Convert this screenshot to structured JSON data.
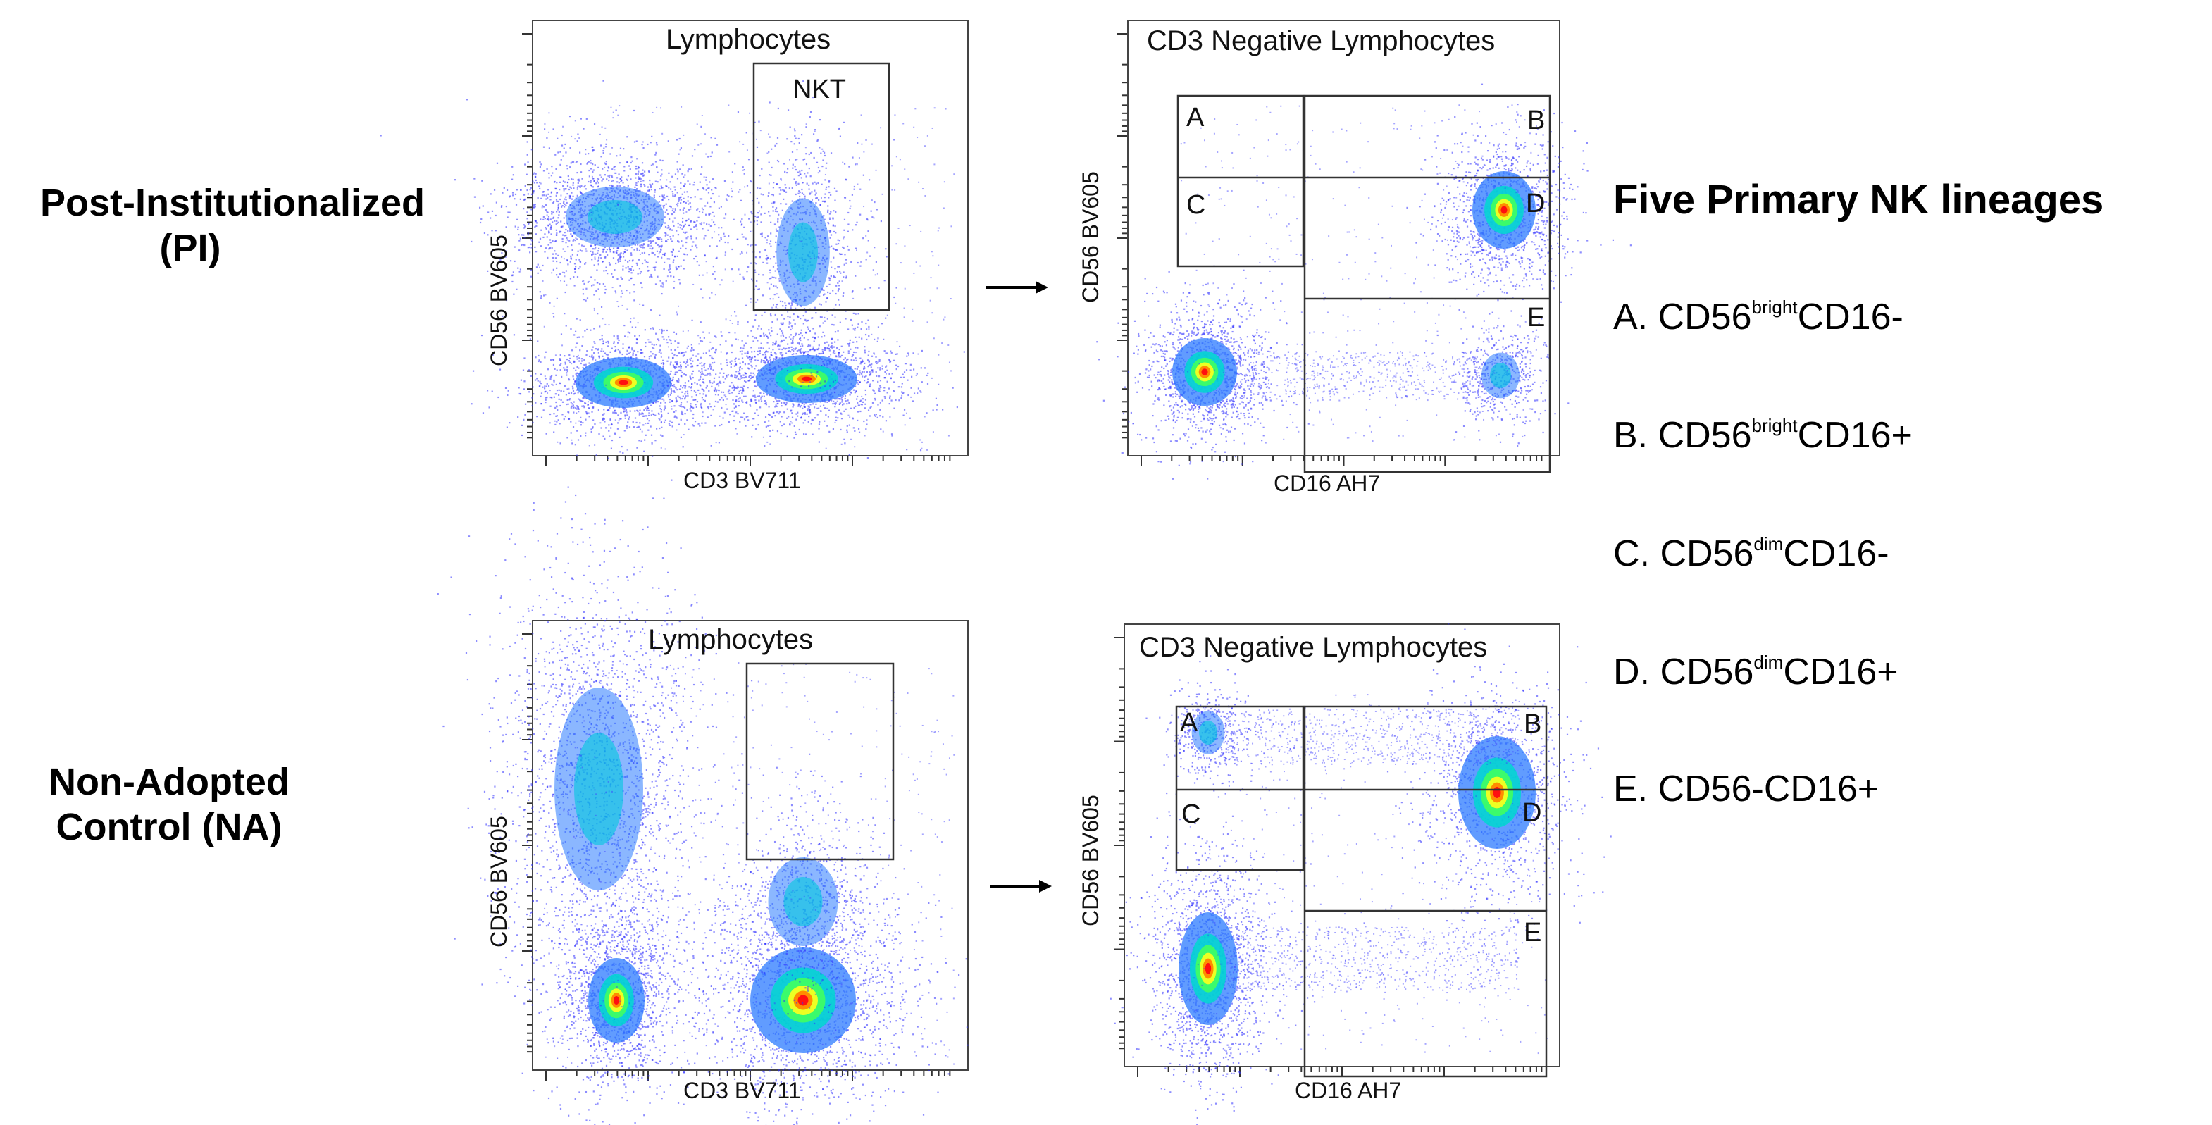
{
  "rows": [
    {
      "label_line1": "Post-Institutionalized",
      "label_line2": "(PI)"
    },
    {
      "label_line1": "Non-Adopted",
      "label_line2": "Control (NA)"
    }
  ],
  "plots": {
    "pi_left": {
      "title": "Lymphocytes",
      "xlabel": "CD3 BV711",
      "ylabel": "CD56 BV605",
      "gate": "NKT"
    },
    "pi_right": {
      "title": "CD3 Negative Lymphocytes",
      "xlabel": "CD16 AH7",
      "ylabel": "CD56 BV605"
    },
    "na_left": {
      "title": "Lymphocytes",
      "xlabel": "CD3 BV711",
      "ylabel": "CD56 BV605"
    },
    "na_right": {
      "title": "CD3 Negative Lymphocytes",
      "xlabel": "CD16 AH7",
      "ylabel": "CD56 BV605"
    }
  },
  "quadrant_gates": [
    "A",
    "B",
    "C",
    "D",
    "E"
  ],
  "lineages": {
    "heading": "Five Primary NK lineages",
    "items": [
      {
        "prefix": "A. CD56",
        "sup": "bright",
        "suffix": "CD16-"
      },
      {
        "prefix": "B. CD56",
        "sup": "bright",
        "suffix": "CD16+"
      },
      {
        "prefix": "C. CD56",
        "sup": "dim",
        "suffix": "CD16-"
      },
      {
        "prefix": "D. CD56",
        "sup": "dim",
        "suffix": "CD16+"
      },
      {
        "prefix": "E. CD56-CD16+",
        "sup": "",
        "suffix": ""
      }
    ]
  },
  "colors": {
    "density_low": "#2a2aff",
    "density_mid": "#00e0a0",
    "density_high": "#ff1010",
    "axis": "#333333"
  }
}
